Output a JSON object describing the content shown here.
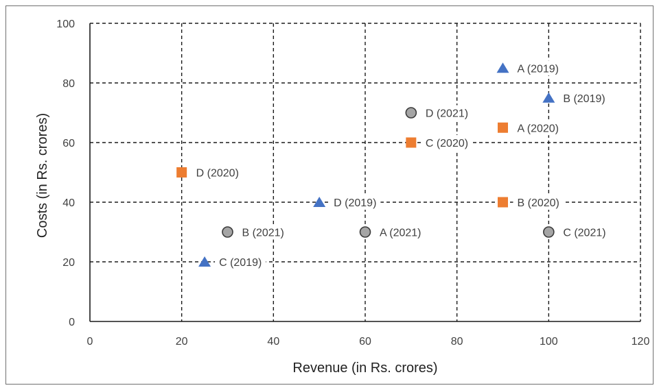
{
  "chart_data": {
    "type": "scatter",
    "xlabel": "Revenue (in Rs. crores)",
    "ylabel": "Costs (in Rs. crores)",
    "xlim": [
      0,
      120
    ],
    "ylim": [
      0,
      100
    ],
    "xticks": [
      0,
      20,
      40,
      60,
      80,
      100,
      120
    ],
    "yticks": [
      0,
      20,
      40,
      60,
      80,
      100
    ],
    "grid": true,
    "grid_style": "dashed",
    "legend": "none (points labeled directly)",
    "series": [
      {
        "year": "2019",
        "marker": "triangle",
        "color": "#4472c4",
        "points": [
          {
            "label": "A (2019)",
            "x": 90,
            "y": 85
          },
          {
            "label": "B (2019)",
            "x": 100,
            "y": 75
          },
          {
            "label": "C (2019)",
            "x": 25,
            "y": 20
          },
          {
            "label": "D (2019)",
            "x": 50,
            "y": 40
          }
        ]
      },
      {
        "year": "2020",
        "marker": "square",
        "color": "#ed7d31",
        "points": [
          {
            "label": "A (2020)",
            "x": 90,
            "y": 65
          },
          {
            "label": "B (2020)",
            "x": 90,
            "y": 40
          },
          {
            "label": "C (2020)",
            "x": 70,
            "y": 60
          },
          {
            "label": "D (2020)",
            "x": 20,
            "y": 50
          }
        ]
      },
      {
        "year": "2021",
        "marker": "circle",
        "color": "#a5a5a5",
        "points": [
          {
            "label": "A (2021)",
            "x": 60,
            "y": 30
          },
          {
            "label": "B (2021)",
            "x": 30,
            "y": 30
          },
          {
            "label": "C (2021)",
            "x": 100,
            "y": 30
          },
          {
            "label": "D (2021)",
            "x": 70,
            "y": 70
          }
        ]
      }
    ]
  }
}
